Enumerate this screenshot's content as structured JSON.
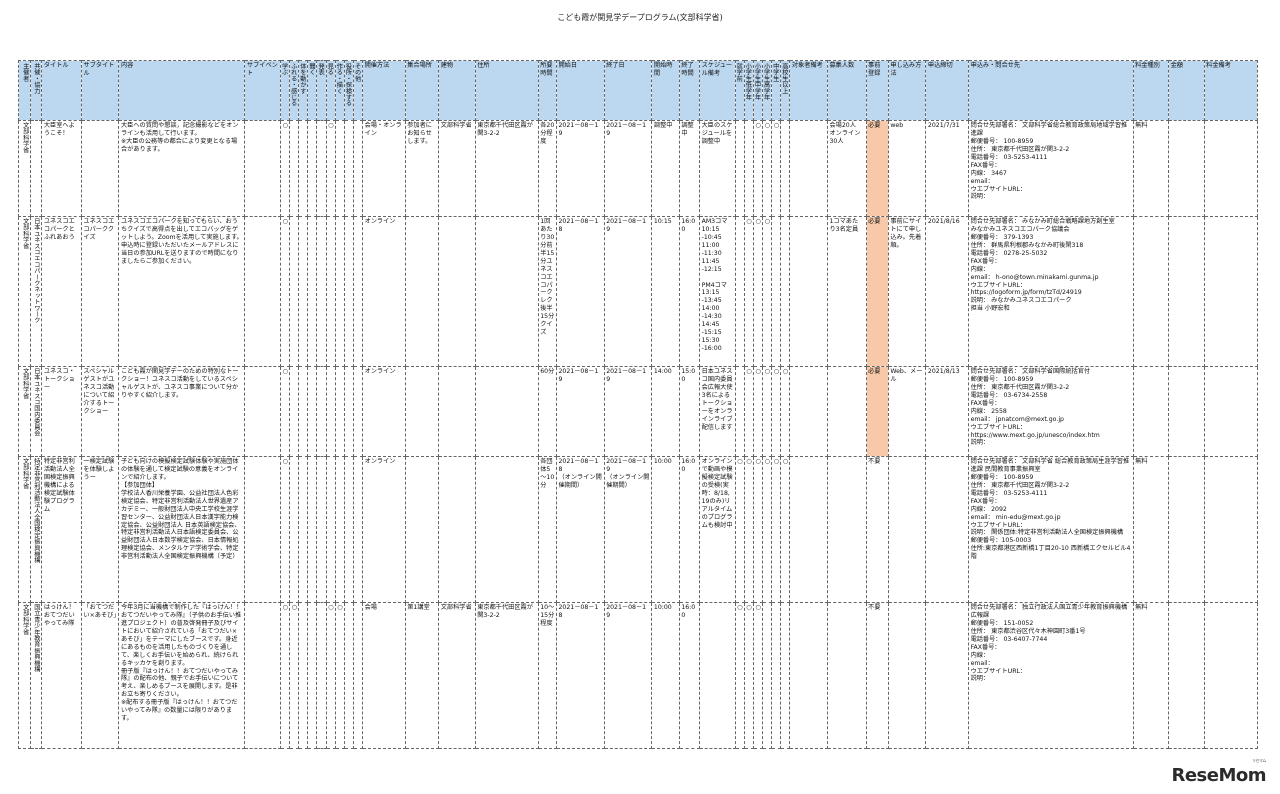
{
  "doc_title": "こども霞が関見学デープログラム(文部科学省)",
  "columns": [
    {
      "key": "organizer",
      "label": "主催者",
      "w": 12,
      "vertical": true
    },
    {
      "key": "cosponsor",
      "label": "共催・協力",
      "w": 11,
      "vertical": true
    },
    {
      "key": "title",
      "label": "タイトル",
      "w": 39
    },
    {
      "key": "subtitle",
      "label": "サブタイトル",
      "w": 37
    },
    {
      "key": "content",
      "label": "内容",
      "w": 124
    },
    {
      "key": "subvenue",
      "label": "サブイベント",
      "w": 35
    },
    {
      "key": "c_learn",
      "label": "学ぶ",
      "w": 9,
      "vertical": true
    },
    {
      "key": "c_touch",
      "label": "ふれる・感じる",
      "w": 9,
      "vertical": true
    },
    {
      "key": "c_body",
      "label": "体を動かす",
      "w": 9,
      "vertical": true
    },
    {
      "key": "c_ask",
      "label": "聞く",
      "w": 9,
      "vertical": true
    },
    {
      "key": "c_tell",
      "label": "発表",
      "w": 9,
      "vertical": true
    },
    {
      "key": "c_see",
      "label": "見る",
      "w": 9,
      "vertical": true
    },
    {
      "key": "c_make",
      "label": "作る・描く",
      "w": 9,
      "vertical": true
    },
    {
      "key": "c_explore",
      "label": "役所・探検する",
      "w": 9,
      "vertical": true
    },
    {
      "key": "c_other",
      "label": "その他",
      "w": 9,
      "vertical": true
    },
    {
      "key": "method",
      "label": "開催方法",
      "w": 42
    },
    {
      "key": "meeting",
      "label": "集合場所",
      "w": 33
    },
    {
      "key": "building",
      "label": "建物",
      "w": 36
    },
    {
      "key": "address",
      "label": "住所",
      "w": 62
    },
    {
      "key": "duration",
      "label": "所要時間",
      "w": 18
    },
    {
      "key": "start",
      "label": "開始日",
      "w": 47
    },
    {
      "key": "end",
      "label": "終了日",
      "w": 47
    },
    {
      "key": "start_time",
      "label": "開始時間",
      "w": 27
    },
    {
      "key": "end_time",
      "label": "終了時間",
      "w": 20
    },
    {
      "key": "schedule",
      "label": "スケジュール備考",
      "w": 35
    },
    {
      "key": "t_pre",
      "label": "就学前",
      "w": 9,
      "vertical": true
    },
    {
      "key": "t_e_low",
      "label": "小学生低学年",
      "w": 9,
      "vertical": true
    },
    {
      "key": "t_e_mid",
      "label": "小学生中学年",
      "w": 9,
      "vertical": true
    },
    {
      "key": "t_e_high",
      "label": "小学生高学年",
      "w": 9,
      "vertical": true
    },
    {
      "key": "t_jh",
      "label": "中学生",
      "w": 9,
      "vertical": true
    },
    {
      "key": "t_hs",
      "label": "高校生以上",
      "w": 9,
      "vertical": true
    },
    {
      "key": "target_note",
      "label": "対象者備考",
      "w": 37
    },
    {
      "key": "capacity",
      "label": "募集人数",
      "w": 38
    },
    {
      "key": "prereg",
      "label": "事前登録",
      "w": 22
    },
    {
      "key": "apply",
      "label": "申し込み方法",
      "w": 37
    },
    {
      "key": "deadline",
      "label": "申込締切",
      "w": 42
    },
    {
      "key": "contact",
      "label": "申込み・問合せ先",
      "w": 162
    },
    {
      "key": "fee_type",
      "label": "料金種別",
      "w": 35
    },
    {
      "key": "fee",
      "label": "金額",
      "w": 35
    },
    {
      "key": "fee_note",
      "label": "料金備考",
      "w": 52
    }
  ],
  "rows": [
    {
      "height": 96,
      "organizer": "文部科学省",
      "cosponsor": "",
      "title": "大臣室へようこそ！",
      "subtitle": "",
      "content": "大臣への質問や懇談，記念撮影などをオンラインも活用して行います。\n※大臣の公務等の都合により変更となる場合があります。",
      "subvenue": "",
      "c_learn": "○",
      "c_touch": "",
      "c_body": "",
      "c_ask": "",
      "c_tell": "",
      "c_see": "○",
      "c_make": "",
      "c_explore": "",
      "c_other": "",
      "method": "会場・オンライン",
      "meeting": "参加者にお知らせします。",
      "building": "文部科学省",
      "address": "東京都千代田区霞が関3-2-2",
      "duration": "各20分程度",
      "start": "2021－08－19",
      "end": "2021－08－19",
      "start_time": "調整中",
      "end_time": "調整中",
      "schedule": "大臣のスケジュールを調整中",
      "t_pre": "",
      "t_e_low": "",
      "t_e_mid": "○",
      "t_e_high": "○",
      "t_jh": "○",
      "t_hs": "",
      "target_note": "",
      "capacity": "会場20人\nオンライン30人",
      "prereg": "必要",
      "apply": "web",
      "deadline": "2021/7/31",
      "contact": "問合せ先部署名： 文部科学省総合教育政策局地域学習推進課\n郵便番号： 100-8959\n住所： 東京都千代田区霞が関3-2-2\n電話番号： 03-5253-4111\nFAX番号：\n内線： 3467\nemail：\nウエブサイトURL：\n説明：",
      "fee_type": "無料",
      "fee": "",
      "fee_note": ""
    },
    {
      "height": 150,
      "organizer": "文部科学省",
      "cosponsor": "日本ユネスコエコパークネットワーク",
      "title": "ユネスコエコパークとふれあおう",
      "subtitle": "ユネスコエコパーククイズ",
      "content": "ユネスコエコパークを知ってもらい、おうちクイズで高得点を出してエコバッグをゲットしよう。Zoomを活用して実施します。申込時に登録いただいたメールアドレスに当日の参加URLを送りますので時間になりましたらご参加ください。",
      "subvenue": "",
      "c_learn": "○",
      "c_touch": "",
      "c_body": "",
      "c_ask": "",
      "c_tell": "",
      "c_see": "",
      "c_make": "",
      "c_explore": "",
      "c_other": "",
      "method": "オンライン",
      "meeting": "",
      "building": "",
      "address": "",
      "duration": "1回あたり30分前半15分ユネスコエコパークレク後半15分クイズ",
      "start": "2021－08－18",
      "end": "2021－08－19",
      "start_time": "10:15",
      "end_time": "16:00",
      "schedule": "AM3コマ\n10:15\n-10:45\n11:00\n-11:30\n11:45\n-12:15\n\nPM4コマ\n13:15\n-13:45\n14:00\n-14:30\n14:45\n-15:15\n15:30\n-16:00",
      "t_pre": "",
      "t_e_low": "○",
      "t_e_mid": "○",
      "t_e_high": "○",
      "t_jh": "",
      "t_hs": "",
      "target_note": "",
      "capacity": "1コマあたり3名定員",
      "prereg": "必要",
      "apply": "事前にサイトにて申し込み。先着順。",
      "deadline": "2021/8/16",
      "contact": "問合せ先部署名： みなかみ町総合戦略課地方創生室\nみなかみユネスコエコパーク協議会\n郵便番号： 379-1393\n住所： 群馬県利根郡みなかみ町後閑318\n電話番号： 0278-25-5032\nFAX番号：\n内線：\nemail： h-ono@town.minakami.gunma.jp\nウエブサイトURL：\nhttps://logoform.jp/form/tzTd/24919\n説明： みなかみユネスコエコパーク\n担当 小野宏和",
      "fee_type": "",
      "fee": "",
      "fee_note": ""
    },
    {
      "height": 90,
      "organizer": "文部科学省",
      "cosponsor": "日本ユネスコ国内委員会",
      "title": "ユネスコ・トークショー",
      "subtitle": "スペシャルゲストがユネスコ活動について紹介するトークショー",
      "content": "こども霞が関見学デーのための特別なトークショー！ユネスコ活動をしているスペシャルゲストが、ユネスコ事業について分かりやすく紹介します。",
      "subvenue": "",
      "c_learn": "○",
      "c_touch": "",
      "c_body": "",
      "c_ask": "",
      "c_tell": "",
      "c_see": "",
      "c_make": "",
      "c_explore": "",
      "c_other": "",
      "method": "オンライン",
      "meeting": "",
      "building": "",
      "address": "",
      "duration": "60分",
      "start": "2021－08－19",
      "end": "2021－08－19",
      "start_time": "14:00",
      "end_time": "15:00",
      "schedule": "日本ユネスコ国内委員会広報大使3名によるトークショーをオンラインライブ配信します",
      "t_pre": "",
      "t_e_low": "○",
      "t_e_mid": "○",
      "t_e_high": "○",
      "t_jh": "○",
      "t_hs": "○",
      "target_note": "",
      "capacity": "",
      "prereg": "必要",
      "apply": "Web、メール",
      "deadline": "2021/8/13",
      "contact": "問合せ先部署名： 文部科学省国際統括官付\n郵便番号： 100-8959\n住所： 東京都千代田区霞が関3-2-2\n電話番号： 03-6734-2558\nFAX番号：\n内線： 2558\nemail： jpnatcom@mext.go.jp\nウエブサイトURL：\nhttps://www.mext.go.jp/unesco/index.htm\n説明：",
      "fee_type": "",
      "fee": "",
      "fee_note": ""
    },
    {
      "height": 146,
      "organizer": "文部科学省",
      "cosponsor": "特定非営利活動法人全国検定振興機構",
      "title": "特定非営利活動法人全国検定振興機構による検定試験体験プログラム",
      "subtitle": "一検定試験を体験しようー",
      "content": "子ども向けの模擬検定試験体験や実施団体の体験を通して検定試験の意義をオンラインで紹介します。\n【参加団体】\n学校法人香川栄養学園、公益社団法人色彩検定協会、特定非営利活動法人世界遺産アカデミー、一般財団法人中央工学校生涯学習センター、公益財団法人日本漢字能力検定協会、公益財団法人 日本英語検定協会、特定非営利活動法人日本語検定委員会、公益財団法人日本数学検定協会、日本情報処理検定協会、メンタルケア学術学会、特定非営利活動法人全国検定振興機構（予定）",
      "subvenue": "",
      "c_learn": "○",
      "c_touch": "",
      "c_body": "",
      "c_ask": "",
      "c_tell": "",
      "c_see": "",
      "c_make": "",
      "c_explore": "",
      "c_other": "",
      "method": "オンライン",
      "meeting": "",
      "building": "",
      "address": "",
      "duration": "各団体5～10分",
      "start": "2021－08－18\n（オンライン開催期間）",
      "end": "2021－08－19\n（オンライン開催期間）",
      "start_time": "10:00",
      "end_time": "16:00",
      "schedule": "オンラインで動画や模擬検定試験の受検(実時：8/18,19のみ)リアルタイムのプログラムも検討中",
      "t_pre": "○",
      "t_e_low": "○",
      "t_e_mid": "○",
      "t_e_high": "○",
      "t_jh": "○",
      "t_hs": "○",
      "target_note": "",
      "capacity": "",
      "prereg": "不要",
      "apply": "",
      "deadline": "",
      "contact": "問合せ先部署名： 文部科学省 総合教育政策局生涯学習推進課 民間教育事業振興室\n郵便番号： 100-8959\n住所： 東京都千代田区霞が関3-2-2\n電話番号： 03-5253-4111\nFAX番号：\n内線： 2092\nemail： min-edu@mext.go.jp\nウエブサイトURL：\n説明： 関係団体:特定非営利活動法人全国検定振興機構\n郵便番号：105-0003\n住所:東京都港区西新橋1丁目20-10 西新橋エクセルビル4階",
      "fee_type": "無料",
      "fee": "",
      "fee_note": ""
    },
    {
      "height": 146,
      "organizer": "文部科学省",
      "cosponsor": "国立青少年教育振興機構",
      "title": "はっけん！おてつだいやってみ隊",
      "subtitle": "「おてつだい×あそび」",
      "content": "今年3月に当機構で制作した『はっけん！！おてつだいやってみ隊』（子供のお手伝い推進プロジェクト）の普及啓発冊子及びサイトにおいて紹介されている「おてつだい×あそび」をテーマにしたブースです。身近にあるものを活用したものづくりを通して、楽しくお手伝いを始められ、続けられるキッカケを創ります。\n冊子版『はっけん！！おてつだいやってみ隊』の配布の他、親子でお手伝いについて考え、楽しめるブースを展開します。是非お立ち寄りください。\n※配布する冊子版『はっけん！！おてつだいやってみ隊』の数量には限りがあります。",
      "subvenue": "",
      "c_learn": "○",
      "c_touch": "○",
      "c_body": "",
      "c_ask": "",
      "c_tell": "",
      "c_see": "○",
      "c_make": "○",
      "c_explore": "",
      "c_other": "",
      "method": "会場",
      "meeting": "第1講堂",
      "building": "文部科学省",
      "address": "東京都千代田区霞が関3-2-2",
      "duration": "10～15分程度",
      "start": "2021－08－18",
      "end": "2021－08－19",
      "start_time": "10:00",
      "end_time": "16:00",
      "schedule": "",
      "t_pre": "○",
      "t_e_low": "○",
      "t_e_mid": "○",
      "t_e_high": "",
      "t_jh": "",
      "t_hs": "",
      "target_note": "",
      "capacity": "",
      "prereg": "不要",
      "apply": "",
      "deadline": "",
      "contact": "問合せ先部署名： 独立行政法人国立青少年教育振興機構 広報課\n郵便番号： 151-0052\n住所： 東京都渋谷区代々木神園町3番1号\n電話番号： 03-6407-7744\nFAX番号：\n内線：\nemail：\nウエブサイトURL：\n説明：",
      "fee_type": "無料",
      "fee": "",
      "fee_note": ""
    }
  ],
  "logo": {
    "text": "ReseMom",
    "ruby": "リセマム"
  }
}
